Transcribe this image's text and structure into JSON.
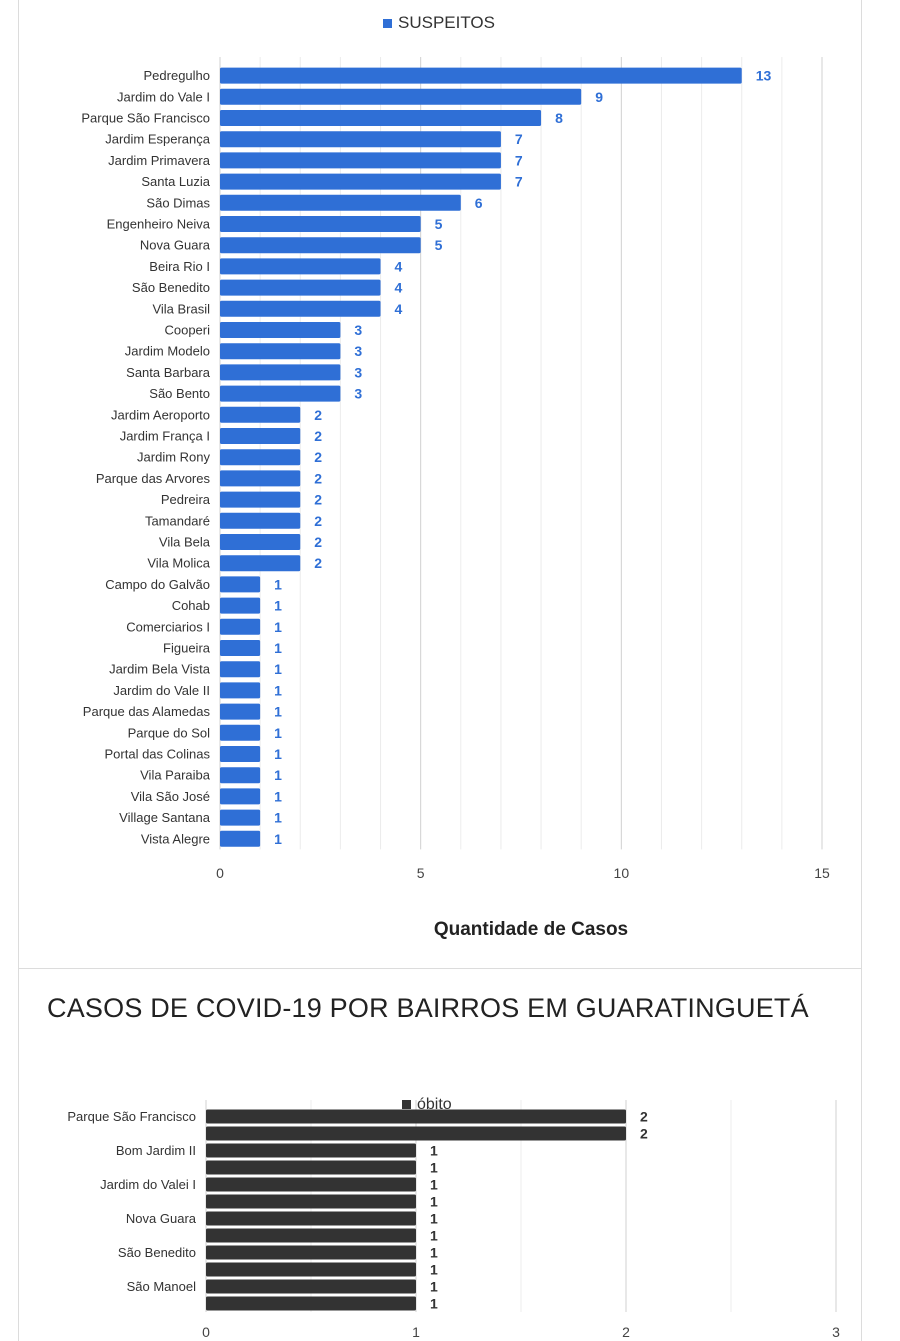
{
  "chart_data": [
    {
      "type": "bar",
      "orientation": "horizontal",
      "title": "",
      "xlabel": "Quantidade de Casos",
      "ylabel": "",
      "xlim": [
        0,
        15
      ],
      "xticks": [
        0,
        5,
        10,
        15
      ],
      "grid": true,
      "legend_position": "top",
      "series": [
        {
          "name": "SUSPEITOS",
          "color": "#2f6fd6",
          "values": [
            13,
            9,
            8,
            7,
            7,
            7,
            6,
            5,
            5,
            4,
            4,
            4,
            3,
            3,
            3,
            3,
            2,
            2,
            2,
            2,
            2,
            2,
            2,
            2,
            1,
            1,
            1,
            1,
            1,
            1,
            1,
            1,
            1,
            1,
            1,
            1,
            1
          ]
        }
      ],
      "categories": [
        "Pedregulho",
        "Jardim do Vale I",
        "Parque São Francisco",
        "Jardim Esperança",
        "Jardim Primavera",
        "Santa Luzia",
        "São Dimas",
        "Engenheiro Neiva",
        "Nova Guara",
        "Beira Rio I",
        "São Benedito",
        "Vila Brasil",
        "Cooperi",
        "Jardim Modelo",
        "Santa Barbara",
        "São Bento",
        "Jardim Aeroporto",
        "Jardim França I",
        "Jardim Rony",
        "Parque das Arvores",
        "Pedreira",
        "Tamandaré",
        "Vila Bela",
        "Vila Molica",
        "Campo do Galvão",
        "Cohab",
        "Comerciarios I",
        "Figueira",
        "Jardim Bela Vista",
        "Jardim do Vale II",
        "Parque das Alamedas",
        "Parque do Sol",
        "Portal das Colinas",
        "Vila Paraiba",
        "Vila São José",
        "Village Santana",
        "Vista Alegre"
      ]
    },
    {
      "type": "bar",
      "orientation": "horizontal",
      "title": "CASOS DE COVID-19 POR BAIRROS EM GUARATINGUETÁ",
      "xlabel": "",
      "ylabel": "",
      "xlim": [
        0,
        3
      ],
      "xticks": [
        0,
        1,
        2,
        3
      ],
      "grid": true,
      "legend_position": "top",
      "series": [
        {
          "name": "óbito",
          "color": "#333333",
          "values": [
            2,
            2,
            1,
            1,
            1,
            1,
            1,
            1,
            1,
            1,
            1,
            1
          ]
        }
      ],
      "categories": [
        "Parque São Francisco",
        "",
        "Bom Jardim II",
        "",
        "Jardim do Valei I",
        "",
        "Nova Guara",
        "",
        "São Benedito",
        "",
        "São Manoel",
        ""
      ]
    }
  ]
}
